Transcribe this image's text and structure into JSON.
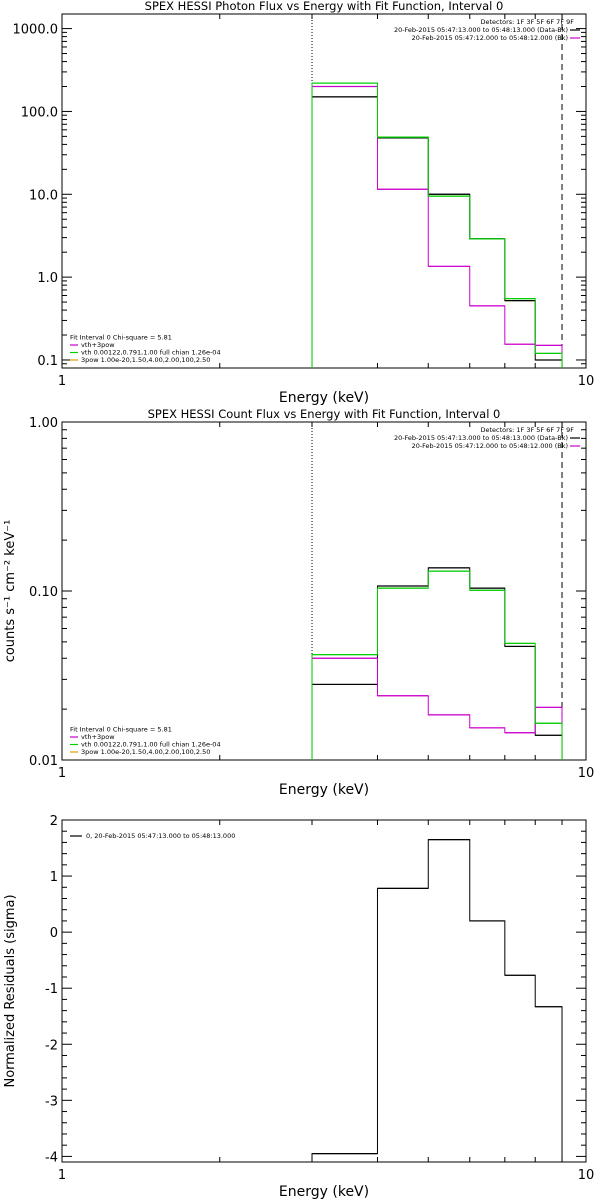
{
  "chart_data": [
    {
      "type": "line",
      "title": "SPEX HESSI Photon Flux vs Energy with Fit Function, Interval 0",
      "xlabel": "Energy (keV)",
      "ylabel": "",
      "xscale": "log",
      "yscale": "log",
      "xlim": [
        1,
        10
      ],
      "ylim": [
        0.08,
        1500
      ],
      "x_ticks": [
        {
          "v": 1,
          "label": "1"
        },
        {
          "v": 10,
          "label": "10"
        }
      ],
      "y_ticks": [
        {
          "v": 0.1,
          "label": "0.1"
        },
        {
          "v": 1,
          "label": "1.0"
        },
        {
          "v": 10,
          "label": "10.0"
        },
        {
          "v": 100,
          "label": "100.0"
        },
        {
          "v": 1000,
          "label": "1000.0"
        }
      ],
      "vlines": [
        {
          "x": 3,
          "style": "dotted"
        },
        {
          "x": 9,
          "style": "dashed"
        }
      ],
      "legend_tr": {
        "title": "Detectors: 1F 3F 5F 6F 7F 9F",
        "entries": [
          {
            "text": "20-Feb-2015 05:47:13.000 to 05:48:13.000 (Data-Bk)",
            "color": "#000000"
          },
          {
            "text": "20-Feb-2015 05:47:12.000 to 05:48:12.000 (Bk)",
            "color": "#cc00cc"
          }
        ]
      },
      "legend_bl": {
        "header": "Fit Interval 0   Chi-square = 5.81",
        "entries": [
          {
            "text": "vth+3pow",
            "color": "#cc00cc"
          },
          {
            "text": "vth 0.00122,0.791,1.00  full chian 1.26e-04",
            "color": "#00cc00"
          },
          {
            "text": "3pow 1.00e-20,1.50,4.00,2.00,100,2.50",
            "color": "#e0a000"
          }
        ]
      },
      "edges": [
        3.0,
        4.0,
        5.0,
        6.0,
        7.0,
        8.0,
        9.0
      ],
      "series": [
        {
          "color": "#000000",
          "values": [
            150,
            48,
            10,
            2.9,
            0.52,
            0.1
          ]
        },
        {
          "color": "#cc00cc",
          "values": [
            200,
            11.5,
            1.35,
            0.45,
            0.155,
            0.15
          ]
        },
        {
          "color": "#00cc00",
          "values": [
            220,
            49,
            9.5,
            2.9,
            0.55,
            0.12
          ]
        }
      ]
    },
    {
      "type": "line",
      "title": "SPEX HESSI Count Flux vs Energy with Fit Function, Interval 0",
      "xlabel": "Energy (keV)",
      "ylabel": "counts s⁻¹ cm⁻² keV⁻¹",
      "xscale": "log",
      "yscale": "log",
      "xlim": [
        1,
        10
      ],
      "ylim": [
        0.01,
        1.0
      ],
      "x_ticks": [
        {
          "v": 1,
          "label": "1"
        },
        {
          "v": 10,
          "label": "10"
        }
      ],
      "y_ticks": [
        {
          "v": 0.01,
          "label": "0.01"
        },
        {
          "v": 0.1,
          "label": "0.10"
        },
        {
          "v": 1,
          "label": "1.00"
        }
      ],
      "vlines": [
        {
          "x": 3,
          "style": "dotted"
        },
        {
          "x": 9,
          "style": "dashed"
        }
      ],
      "legend_tr": {
        "title": "Detectors: 1F 3F 5F 6F 7F 9F",
        "entries": [
          {
            "text": "20-Feb-2015 05:47:13.000 to 05:48:13.000 (Data-Bk)",
            "color": "#000000"
          },
          {
            "text": "20-Feb-2015 05:47:12.000 to 05:48:12.000 (Bk)",
            "color": "#cc00cc"
          }
        ]
      },
      "legend_bl": {
        "header": "Fit Interval 0   Chi-square = 5.81",
        "entries": [
          {
            "text": "vth+3pow",
            "color": "#cc00cc"
          },
          {
            "text": "vth 0.00122,0.791,1.00  full chian 1.26e-04",
            "color": "#00cc00"
          },
          {
            "text": "3pow 1.00e-20,1.50,4.00,2.00,100,2.50",
            "color": "#e0a000"
          }
        ]
      },
      "edges": [
        3.0,
        4.0,
        5.0,
        6.0,
        7.0,
        8.0,
        9.0
      ],
      "series": [
        {
          "color": "#000000",
          "values": [
            0.028,
            0.107,
            0.137,
            0.104,
            0.047,
            0.014
          ]
        },
        {
          "color": "#cc00cc",
          "values": [
            0.04,
            0.024,
            0.0185,
            0.0155,
            0.0145,
            0.0205
          ]
        },
        {
          "color": "#00cc00",
          "values": [
            0.042,
            0.104,
            0.131,
            0.101,
            0.049,
            0.0165
          ]
        }
      ]
    },
    {
      "type": "line",
      "title": "",
      "xlabel": "Energy (keV)",
      "ylabel": "Normalized Residuals (sigma)",
      "xscale": "log",
      "yscale": "linear",
      "xlim": [
        1,
        10
      ],
      "ylim": [
        -4.1,
        2.0
      ],
      "x_ticks": [
        {
          "v": 1,
          "label": "1"
        },
        {
          "v": 10,
          "label": "10"
        }
      ],
      "y_ticks": [
        {
          "v": -4,
          "label": "-4"
        },
        {
          "v": -3,
          "label": "-3"
        },
        {
          "v": -2,
          "label": "-2"
        },
        {
          "v": -1,
          "label": "-1"
        },
        {
          "v": 0,
          "label": "0"
        },
        {
          "v": 1,
          "label": "1"
        },
        {
          "v": 2,
          "label": "2"
        }
      ],
      "vlines": [],
      "legend_tl": {
        "entries": [
          {
            "text": "0, 20-Feb-2015 05:47:13.000 to 05:48:13.000",
            "color": "#000000"
          }
        ]
      },
      "edges": [
        3.0,
        4.0,
        5.0,
        6.0,
        7.0,
        8.0,
        9.0
      ],
      "series": [
        {
          "color": "#000000",
          "values": [
            -3.95,
            0.78,
            1.65,
            0.2,
            -0.77,
            -1.33
          ]
        }
      ]
    }
  ]
}
